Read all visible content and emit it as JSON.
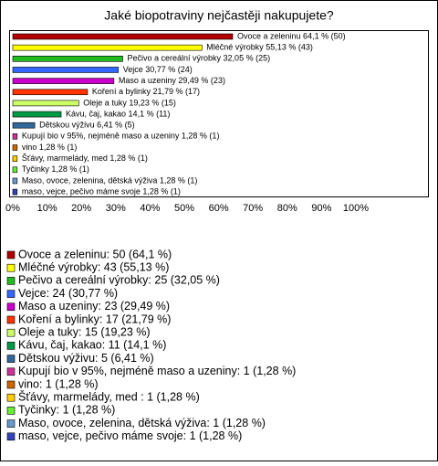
{
  "chart_data": {
    "type": "bar",
    "orientation": "horizontal",
    "title": "Jaké biopotraviny nejčastěji nakupujete?",
    "values": [
      64.1,
      55.13,
      32.05,
      30.77,
      29.49,
      21.79,
      19.23,
      14.1,
      6.41,
      1.28,
      1.28,
      1.28,
      1.28,
      1.28,
      1.28
    ],
    "value_labels": [
      "Ovoce a zeleninu 64,1 % (50)",
      "Mléčné výrobky 55,13 % (43)",
      "Pečivo a cereální výrobky 32,05 % (25)",
      "Vejce 30,77 % (24)",
      "Maso a uzeniny 29,49 % (23)",
      "Koření a bylinky 21,79 % (17)",
      "Oleje a tuky 19,23 % (15)",
      "Kávu, čaj, kakao 14,1 % (11)",
      "Dětskou výživu 6,41 % (5)",
      "Kupují bio v 95%, nejméně maso a uzeniny 1,28 % (1)",
      "vino 1,28 % (1)",
      "Šťávy, marmelády, med  1,28 % (1)",
      "Tyčinky 1,28 % (1)",
      "Maso, ovoce, zelenina, dětská výživa 1,28 % (1)",
      "maso, vejce, pečivo máme svoje 1,28 % (1)"
    ],
    "colors": [
      "#b00000",
      "#ffff00",
      "#22bb22",
      "#3366ff",
      "#cc00cc",
      "#ff3300",
      "#ccff66",
      "#009944",
      "#336699",
      "#cc3399",
      "#cc6600",
      "#ffcc00",
      "#66ee33",
      "#6699cc",
      "#3344bb"
    ],
    "legend_labels": [
      "Ovoce a zeleninu: 50 (64,1 %)",
      "Mléčné výrobky: 43 (55,13 %)",
      "Pečivo a cereální výrobky: 25 (32,05 %)",
      "Vejce: 24 (30,77 %)",
      "Maso a uzeniny: 23 (29,49 %)",
      "Koření a bylinky: 17 (21,79 %)",
      "Oleje a tuky: 15 (19,23 %)",
      "Kávu, čaj, kakao: 11 (14,1 %)",
      "Dětskou výživu: 5 (6,41 %)",
      "Kupují bio v 95%, nejméně maso a uzeniny: 1 (1,28 %)",
      "vino: 1 (1,28 %)",
      "Šťávy, marmelády, med : 1 (1,28 %)",
      "Tyčinky: 1 (1,28 %)",
      "Maso, ovoce, zelenina, dětská výživa: 1 (1,28 %)",
      "maso, vejce, pečivo máme svoje: 1 (1,28 %)"
    ],
    "xlim": [
      0,
      100
    ],
    "xticks": [
      {
        "value": 0,
        "label": "0%"
      },
      {
        "value": 10,
        "label": "10%"
      },
      {
        "value": 20,
        "label": "20%"
      },
      {
        "value": 30,
        "label": "30%"
      },
      {
        "value": 40,
        "label": "40%"
      },
      {
        "value": 50,
        "label": "50%"
      },
      {
        "value": 60,
        "label": "60%"
      },
      {
        "value": 70,
        "label": "70%"
      },
      {
        "value": 80,
        "label": "80%"
      },
      {
        "value": 90,
        "label": "90%"
      },
      {
        "value": 100,
        "label": "100%"
      }
    ],
    "grid": false
  }
}
